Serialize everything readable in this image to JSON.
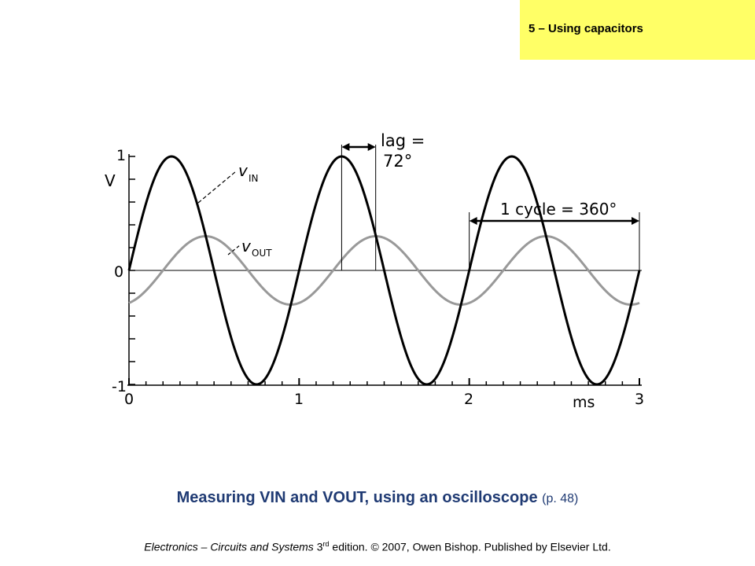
{
  "header": {
    "section_label": "5 – Using capacitors"
  },
  "chart_data": {
    "type": "line",
    "title": "",
    "xlabel": "ms",
    "ylabel": "V",
    "xlim": [
      0,
      3
    ],
    "ylim": [
      -1,
      1
    ],
    "x_ticks": [
      "0",
      "1",
      "2",
      "3"
    ],
    "y_ticks": [
      "1",
      "0",
      "-1"
    ],
    "grid": false,
    "series": [
      {
        "name": "vIN",
        "label_main": "v",
        "label_sub": "IN",
        "color": "#000000",
        "amplitude": 1.0,
        "period_ms": 1.0,
        "phase_deg": 0
      },
      {
        "name": "vOUT",
        "label_main": "v",
        "label_sub": "OUT",
        "color": "#999999",
        "amplitude": 0.3,
        "period_ms": 1.0,
        "phase_deg": -72
      }
    ],
    "annotations": [
      {
        "id": "lag",
        "text_line1": "lag =",
        "text_line2": "72°",
        "from_ms": 1.25,
        "to_ms": 1.45
      },
      {
        "id": "cycle",
        "text": "1 cycle = 360°",
        "from_ms": 2.0,
        "to_ms": 3.0
      }
    ]
  },
  "caption": {
    "main": "Measuring VIN and VOUT, using an oscilloscope",
    "page_ref": "(p. 48)"
  },
  "credit": {
    "book_title": "Electronics – Circuits and Systems",
    "edition_num": "3",
    "edition_sup": "rd",
    "rest": "edition. © 2007, Owen Bishop. Published by Elsevier Ltd."
  }
}
